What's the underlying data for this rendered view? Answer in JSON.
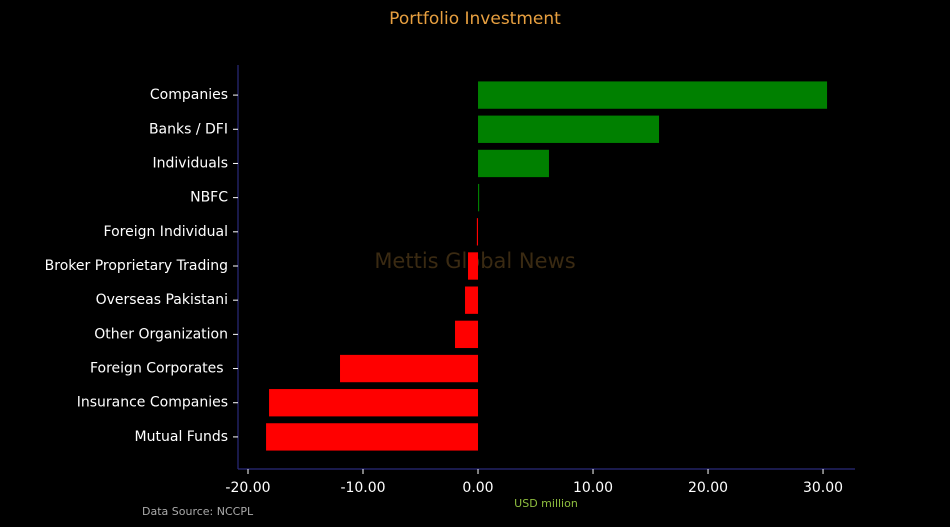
{
  "chart_data": {
    "type": "barh",
    "title": "Portfolio Investment",
    "xlabel": "USD million",
    "watermark": "Mettis Global News",
    "source": "Data Source: NCCPL",
    "categories": [
      "Companies",
      "Banks / DFI",
      "Individuals",
      "NBFC",
      "Foreign Individual",
      "Broker Proprietary Trading",
      "Overseas Pakistani",
      "Other Organization",
      "Foreign Corporates ",
      "Insurance Companies",
      "Mutual Funds"
    ],
    "values": [
      30.35,
      15.74,
      6.17,
      0.1,
      -0.1,
      -0.87,
      -1.13,
      -2.0,
      -12.0,
      -18.17,
      -18.43
    ],
    "colors": [
      "#008000",
      "#008000",
      "#008000",
      "#008000",
      "#ff0000",
      "#ff0000",
      "#ff0000",
      "#ff0000",
      "#ff0000",
      "#ff0000",
      "#ff0000"
    ],
    "xlim": [
      -20.87,
      32.78
    ],
    "xticks": [
      {
        "value": -20,
        "label": "-20.00"
      },
      {
        "value": -10,
        "label": "-10.00"
      },
      {
        "value": 0,
        "label": "0.00"
      },
      {
        "value": 10,
        "label": "10.00"
      },
      {
        "value": 20,
        "label": "20.00"
      },
      {
        "value": 30,
        "label": "30.00"
      }
    ]
  }
}
